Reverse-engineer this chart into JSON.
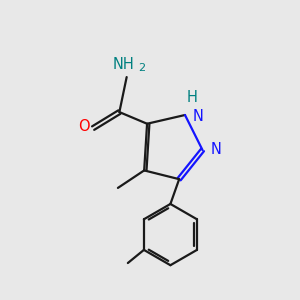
{
  "background_color": "#e8e8e8",
  "bond_color": "#1a1a1a",
  "n_color": "#1414ff",
  "nh_color": "#008080",
  "o_color": "#ff0000",
  "line_width": 1.6,
  "figsize": [
    3.0,
    3.0
  ],
  "dpi": 100,
  "xlim": [
    0,
    10
  ],
  "ylim": [
    0,
    10
  ]
}
